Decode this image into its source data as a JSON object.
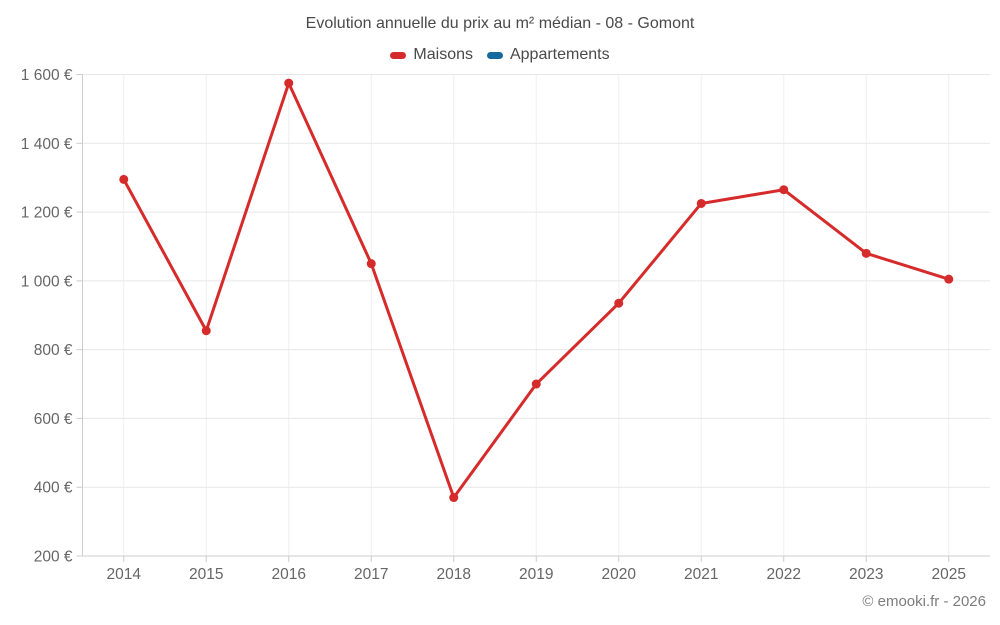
{
  "page": {
    "background": "#ffffff"
  },
  "footer": {
    "copyright": "© emooki.fr - 2026"
  },
  "colors": {
    "maisons": "#d62b2b",
    "appartements": "#16699d",
    "grid": "#e7e7e7",
    "axis": "#cccccc",
    "tick_text": "#666666",
    "title_text": "#4a4a4a"
  },
  "chart_data": {
    "type": "line",
    "title": "Evolution annuelle du prix au m² médian - 08 - Gomont",
    "categories": [
      "2014",
      "2015",
      "2016",
      "2017",
      "2018",
      "2019",
      "2020",
      "2021",
      "2022",
      "2023",
      "2025"
    ],
    "series": [
      {
        "name": "Maisons",
        "color": "#d62b2b",
        "values": [
          1295,
          855,
          1575,
          1050,
          370,
          700,
          935,
          1225,
          1265,
          1080,
          1005
        ]
      },
      {
        "name": "Appartements",
        "color": "#16699d",
        "values": []
      }
    ],
    "xlabel": "",
    "ylabel": "",
    "ylim": [
      200,
      1600
    ],
    "ytick_step": 200,
    "ytick_suffix": " €",
    "grid": true,
    "legend_position": "top",
    "marker_radius": 4.5,
    "line_width": 3
  }
}
